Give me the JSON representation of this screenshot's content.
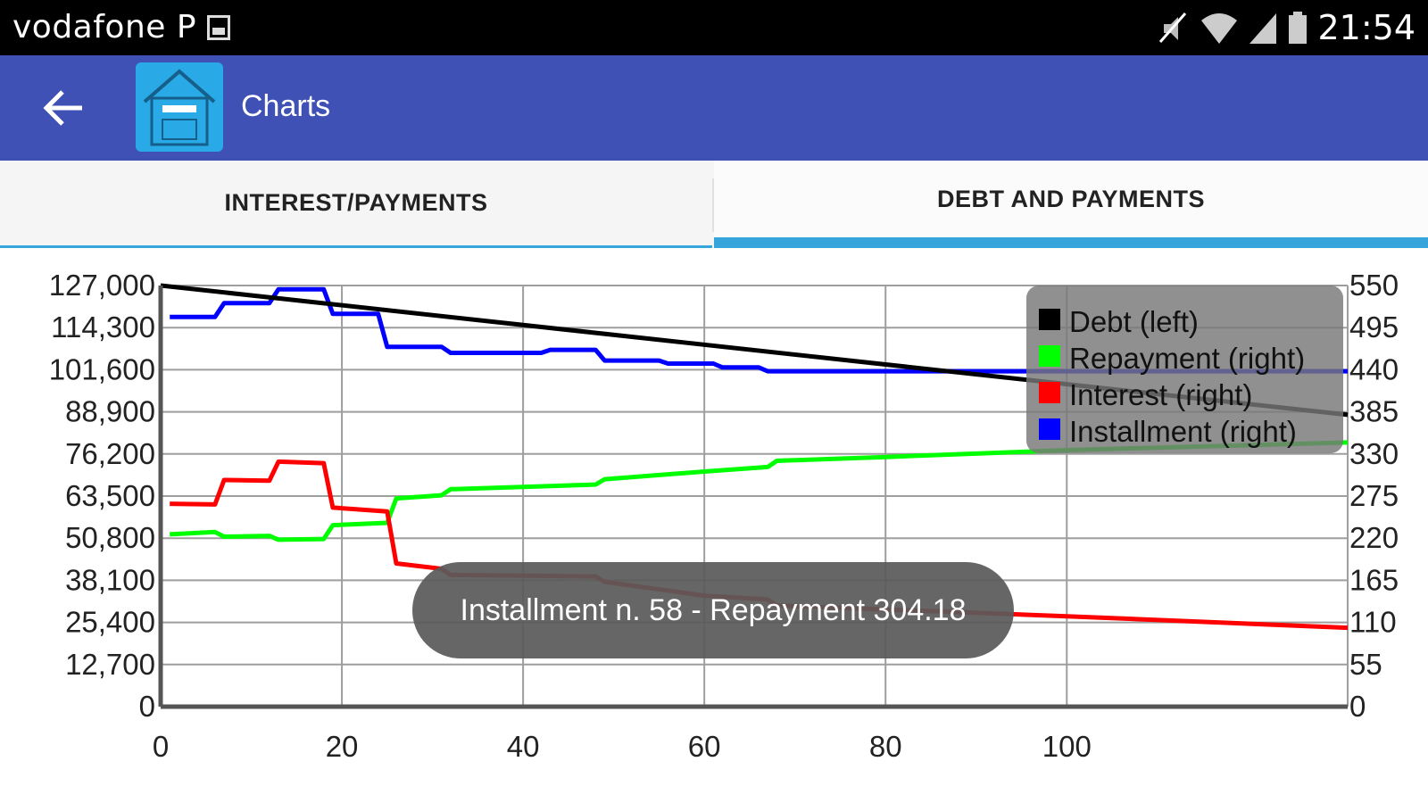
{
  "status_bar": {
    "carrier": "vodafone P",
    "time": "21:54",
    "icons": [
      "image-icon",
      "mute-icon",
      "wifi-icon",
      "signal-icon",
      "battery-icon"
    ]
  },
  "app_bar": {
    "title": "Charts",
    "back_icon": "arrow-left-icon",
    "app_icon": "house-calculator-icon",
    "color": "#3F51B5"
  },
  "tabs": [
    {
      "label": "INTEREST/PAYMENTS",
      "selected": false
    },
    {
      "label": "DEBT AND PAYMENTS",
      "selected": true
    }
  ],
  "toast": {
    "text": "Installment n. 58 - Repayment 304.18"
  },
  "chart_data": {
    "type": "line",
    "x_ticks": [
      "0",
      "20",
      "40",
      "60",
      "80",
      "100"
    ],
    "xlim": [
      0,
      131
    ],
    "y_left_ticks": [
      "0",
      "12,700",
      "25,400",
      "38,100",
      "50,800",
      "63,500",
      "76,200",
      "88,900",
      "101,600",
      "114,300",
      "127,000"
    ],
    "y_left_lim": [
      0,
      127000
    ],
    "y_right_ticks": [
      "0",
      "55",
      "110",
      "165",
      "220",
      "275",
      "330",
      "385",
      "440",
      "495",
      "550"
    ],
    "y_right_lim": [
      0,
      550
    ],
    "grid": true,
    "legend_position": "top-right",
    "series": [
      {
        "name": "Debt (left)",
        "axis": "left",
        "color": "#000000",
        "x": [
          0,
          131
        ],
        "y": [
          127000,
          88000
        ]
      },
      {
        "name": "Repayment (right)",
        "axis": "right",
        "color": "#00FF00",
        "x": [
          1,
          6,
          7,
          12,
          13,
          18,
          19,
          25,
          26,
          31,
          32,
          48,
          49,
          60,
          67,
          68,
          80,
          100,
          131
        ],
        "y": [
          225,
          228,
          222,
          223,
          218,
          219,
          237,
          240,
          272,
          276,
          284,
          290,
          297,
          307,
          313,
          321,
          326,
          335,
          345
        ]
      },
      {
        "name": "Interest (right)",
        "axis": "right",
        "color": "#FF0000",
        "x": [
          1,
          6,
          7,
          12,
          13,
          18,
          19,
          25,
          26,
          31,
          32,
          48,
          49,
          60,
          67,
          68,
          80,
          100,
          131
        ],
        "y": [
          265,
          264,
          296,
          295,
          320,
          318,
          260,
          255,
          187,
          180,
          172,
          170,
          163,
          145,
          140,
          132,
          127,
          118,
          103
        ]
      },
      {
        "name": "Installment (right)",
        "axis": "right",
        "color": "#0000FF",
        "x": [
          1,
          6,
          7,
          12,
          13,
          18,
          19,
          24,
          25,
          31,
          32,
          42,
          43,
          48,
          49,
          55,
          56,
          61,
          62,
          66,
          67,
          131
        ],
        "y": [
          509,
          509,
          527,
          527,
          545,
          545,
          513,
          513,
          470,
          470,
          462,
          462,
          466,
          466,
          452,
          452,
          448,
          448,
          443,
          443,
          438,
          438
        ]
      }
    ]
  }
}
